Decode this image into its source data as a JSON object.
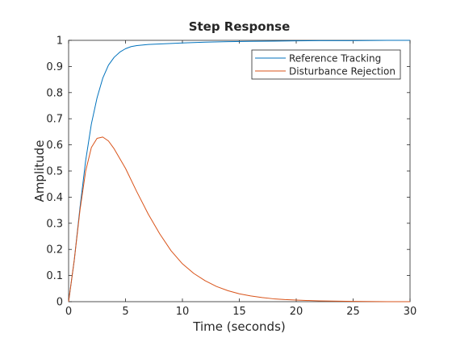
{
  "chart_data": {
    "type": "line",
    "title": "Step Response",
    "xlabel": "Time (seconds)",
    "ylabel": "Amplitude",
    "xlim": [
      0,
      30
    ],
    "ylim": [
      0,
      1
    ],
    "xticks": [
      0,
      5,
      10,
      15,
      20,
      25,
      30
    ],
    "yticks": [
      0,
      0.1,
      0.2,
      0.3,
      0.4,
      0.5,
      0.6,
      0.7,
      0.8,
      0.9,
      1
    ],
    "grid": false,
    "legend_position": "top-right",
    "series": [
      {
        "name": "Reference Tracking",
        "color": "#0072BD",
        "x": [
          0,
          0.5,
          1,
          1.5,
          2,
          2.5,
          3,
          3.5,
          4,
          4.5,
          5,
          5.5,
          6,
          7,
          8,
          9,
          10,
          12,
          14,
          16,
          18,
          20,
          22,
          25,
          28,
          30
        ],
        "y": [
          0,
          0.16,
          0.36,
          0.54,
          0.68,
          0.78,
          0.855,
          0.905,
          0.935,
          0.955,
          0.968,
          0.976,
          0.98,
          0.984,
          0.986,
          0.988,
          0.99,
          0.993,
          0.995,
          0.996,
          0.997,
          0.998,
          0.999,
          0.999,
          1.0,
          1.0
        ]
      },
      {
        "name": "Disturbance Rejection",
        "color": "#D95319",
        "x": [
          0,
          0.5,
          1,
          1.5,
          2,
          2.5,
          3,
          3.5,
          4,
          5,
          6,
          7,
          8,
          9,
          10,
          11,
          12,
          13,
          14,
          15,
          16,
          17,
          18,
          19,
          20,
          22,
          25,
          28,
          30
        ],
        "y": [
          0,
          0.16,
          0.35,
          0.5,
          0.59,
          0.625,
          0.63,
          0.615,
          0.585,
          0.51,
          0.42,
          0.335,
          0.26,
          0.195,
          0.145,
          0.108,
          0.08,
          0.058,
          0.042,
          0.03,
          0.022,
          0.016,
          0.011,
          0.008,
          0.006,
          0.003,
          0.001,
          0.0,
          0.0
        ]
      }
    ]
  }
}
